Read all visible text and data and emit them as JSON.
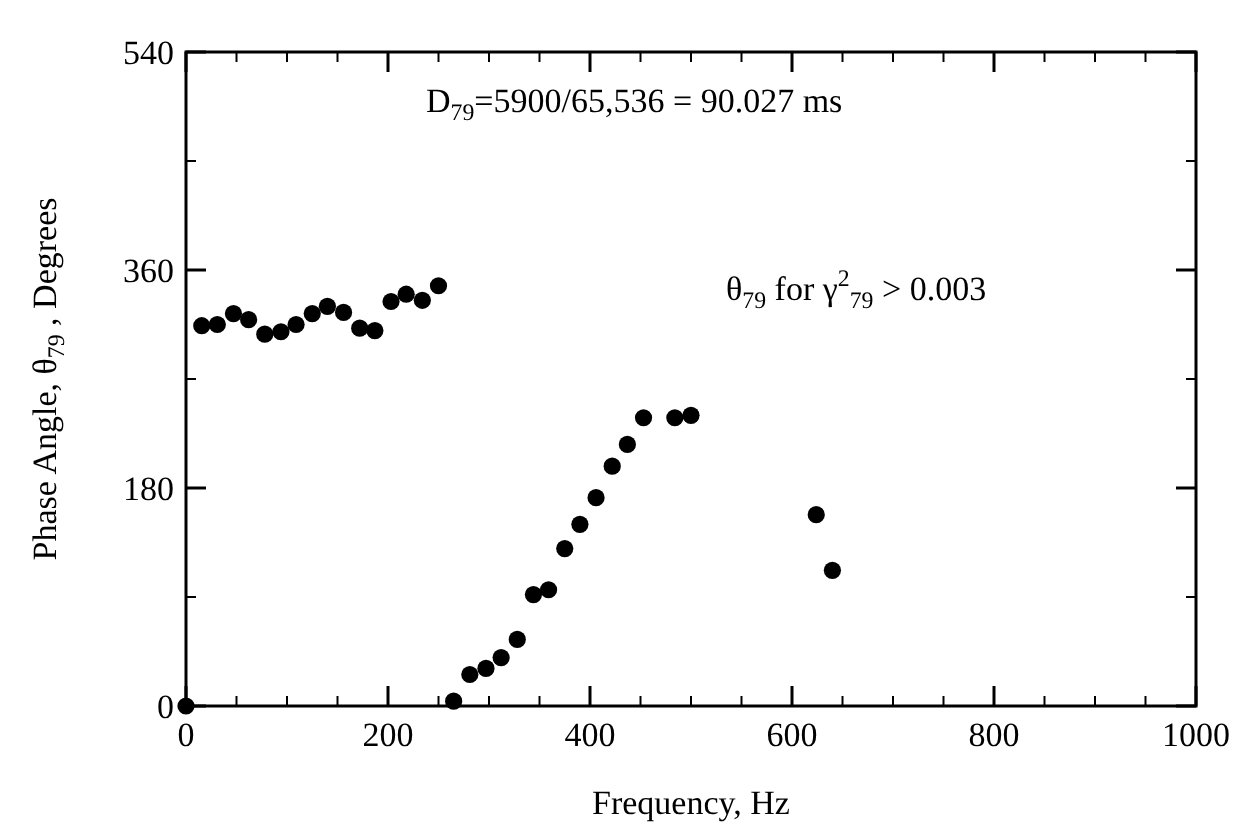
{
  "chart_data": {
    "type": "scatter",
    "xlabel": "Frequency, Hz",
    "ylabel": "Phase Angle,  θ$_{79}$ , Degrees",
    "annotations": [
      "D$_{79}$=5900/65,536 = 90.027 ms",
      "θ$_{79}$  for  γ$^{2}$$_{79}$ > 0.003"
    ],
    "x": [
      0,
      15.6,
      31,
      47,
      62,
      78,
      94,
      109,
      125,
      140,
      156,
      172,
      187,
      203,
      218,
      234,
      250,
      265,
      281,
      297,
      312,
      328,
      344,
      359,
      375,
      390,
      406,
      422,
      437,
      453,
      484,
      500,
      624,
      640
    ],
    "series": [
      {
        "color": "#000000",
        "values": [
          0,
          314,
          315,
          324,
          319,
          307,
          309,
          315,
          324,
          330,
          325,
          312,
          310,
          334,
          340,
          335,
          347,
          4,
          26,
          31,
          40,
          55,
          92,
          96,
          130,
          150,
          172,
          198,
          216,
          238,
          238,
          240,
          158,
          112
        ]
      }
    ],
    "xlim": [
      0,
      1000
    ],
    "xticks": [
      0,
      200,
      400,
      600,
      800,
      1000
    ],
    "ylim": [
      0,
      540
    ],
    "yticks": [
      0,
      180,
      360,
      540
    ],
    "marker": "circle"
  }
}
